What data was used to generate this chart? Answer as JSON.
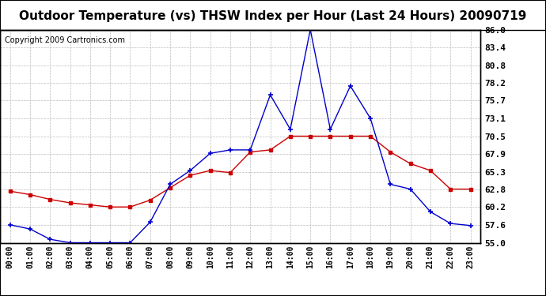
{
  "title": "Outdoor Temperature (vs) THSW Index per Hour (Last 24 Hours) 20090719",
  "copyright": "Copyright 2009 Cartronics.com",
  "hours": [
    "00:00",
    "01:00",
    "02:00",
    "03:00",
    "04:00",
    "05:00",
    "06:00",
    "07:00",
    "08:00",
    "09:00",
    "10:00",
    "11:00",
    "12:00",
    "13:00",
    "14:00",
    "15:00",
    "16:00",
    "17:00",
    "18:00",
    "19:00",
    "20:00",
    "21:00",
    "22:00",
    "23:00"
  ],
  "temp": [
    62.5,
    62.0,
    61.3,
    60.8,
    60.5,
    60.2,
    60.2,
    61.2,
    63.0,
    64.8,
    65.5,
    65.2,
    68.2,
    68.5,
    70.5,
    70.5,
    70.5,
    70.5,
    70.5,
    68.2,
    66.5,
    65.5,
    62.8,
    62.8
  ],
  "thsw": [
    57.6,
    57.0,
    55.5,
    55.0,
    55.0,
    55.0,
    55.0,
    58.0,
    63.5,
    65.5,
    68.0,
    68.5,
    68.5,
    76.5,
    71.5,
    86.0,
    71.5,
    77.8,
    73.1,
    63.5,
    62.8,
    59.5,
    57.8,
    57.5
  ],
  "ylim_min": 55.0,
  "ylim_max": 86.0,
  "yticks": [
    55.0,
    57.6,
    60.2,
    62.8,
    65.3,
    67.9,
    70.5,
    73.1,
    75.7,
    78.2,
    80.8,
    83.4,
    86.0
  ],
  "temp_color": "#cc0000",
  "thsw_color": "#0000cc",
  "bg_color": "#ffffff",
  "grid_color": "#bbbbbb",
  "title_fontsize": 11,
  "copyright_fontsize": 7
}
